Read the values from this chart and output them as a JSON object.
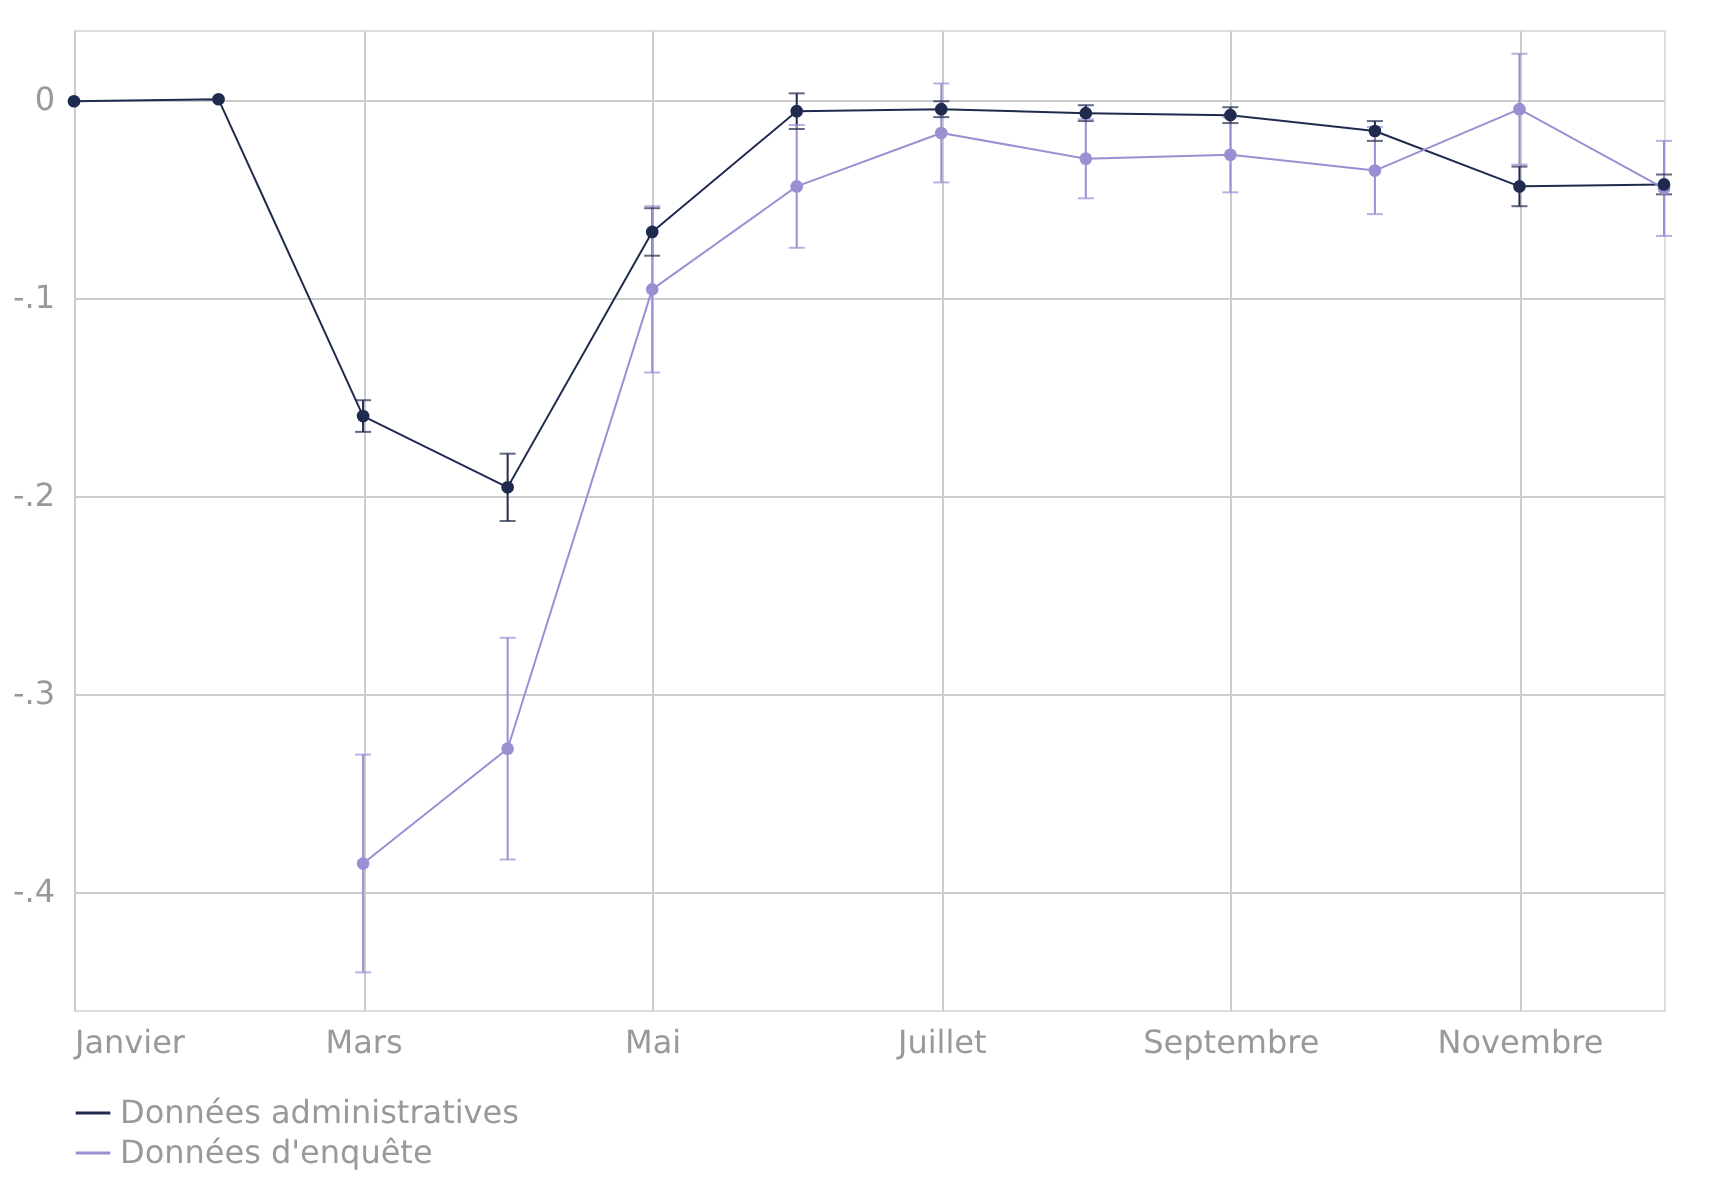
{
  "chart_data": {
    "type": "line",
    "categories": [
      "Janvier",
      null,
      "Mars",
      null,
      "Mai",
      null,
      "Juillet",
      null,
      "Septembre",
      null,
      "Novembre",
      null
    ],
    "series": [
      {
        "name": "Données administratives",
        "color": "#1f2a4f",
        "values": [
          -0.001,
          0,
          -0.16,
          -0.196,
          -0.067,
          -0.006,
          -0.005,
          -0.007,
          -0.008,
          -0.016,
          -0.044,
          -0.043
        ],
        "errors": [
          null,
          null,
          0.008,
          0.017,
          0.012,
          0.009,
          0.004,
          0.004,
          0.004,
          0.005,
          0.01,
          0.005
        ]
      },
      {
        "name": "Données d'enquête",
        "color": "#9b8fd4",
        "values": [
          null,
          null,
          -0.386,
          -0.328,
          -0.096,
          -0.044,
          -0.017,
          -0.03,
          -0.028,
          -0.036,
          -0.005,
          -0.045
        ],
        "errors": [
          null,
          null,
          0.055,
          0.056,
          0.042,
          0.031,
          0.025,
          0.02,
          0.019,
          0.022,
          0.028,
          0.024
        ]
      }
    ],
    "ylim": [
      -0.46,
      0.035
    ],
    "yticks": [
      0,
      {
        "value": -0.1,
        "label": "-.1"
      },
      {
        "value": -0.2,
        "label": "-.2"
      },
      {
        "value": -0.3,
        "label": "-.3"
      },
      {
        "value": -0.4,
        "label": "-.4"
      }
    ],
    "grid": true,
    "legend": "bottom",
    "marker": "circle",
    "line_style": "solid"
  }
}
